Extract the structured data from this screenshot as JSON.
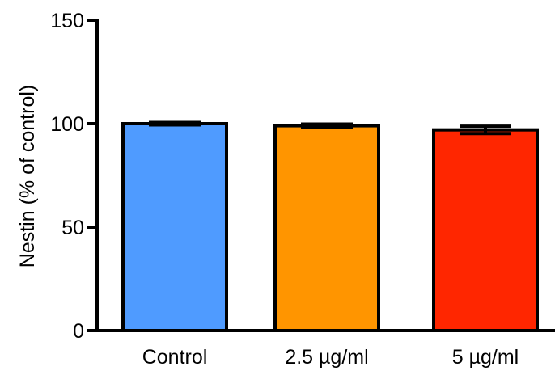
{
  "chart_data": {
    "type": "bar",
    "title": "",
    "xlabel": "",
    "ylabel": "Nestin (% of control)",
    "ylim": [
      0,
      150
    ],
    "yticks": [
      0,
      50,
      100,
      150
    ],
    "categories": [
      "Control",
      "2.5 µg/ml",
      "5 µg/ml"
    ],
    "values": [
      100,
      99,
      97
    ],
    "errors": [
      0.6,
      0.8,
      1.8
    ],
    "colors": [
      "#4f9bff",
      "#ff9500",
      "#ff2600"
    ],
    "grid": false,
    "legend": "none"
  }
}
